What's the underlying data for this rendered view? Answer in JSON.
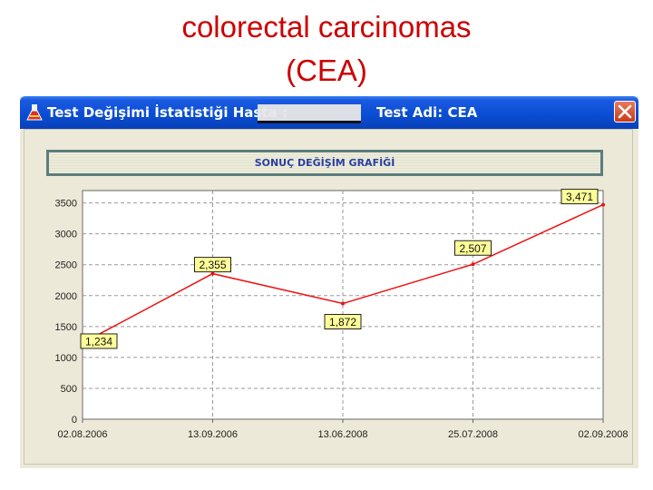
{
  "slide": {
    "title_line1": "colorectal carcinomas",
    "title_line2": "(CEA)"
  },
  "window": {
    "title_part1": "Test Değişimi İstatistiği Hasta :",
    "title_part2": "Test Adi: CEA",
    "app_icon": "flask-icon",
    "close_icon": "close-icon",
    "titlebar_color": "#0a4ed4"
  },
  "chart_title": "SONUÇ DEĞİŞİM GRAFİĞİ",
  "chart_data": {
    "type": "line",
    "title": "SONUÇ DEĞİŞİM GRAFİĞİ",
    "x": [
      "02.08.2006",
      "13.09.2006",
      "13.06.2008",
      "25.07.2008",
      "02.09.2008"
    ],
    "values": [
      1234,
      2355,
      1872,
      2507,
      3471
    ],
    "data_labels": [
      "1,234",
      "2,355",
      "1,872",
      "2,507",
      "3,471"
    ],
    "yticks": [
      "0",
      "500",
      "1000",
      "1500",
      "2000",
      "2500",
      "3000",
      "3500"
    ],
    "ylim": [
      0,
      3700
    ],
    "grid": true,
    "line_color": "#ee1111",
    "label_bg": "#ffff99"
  }
}
